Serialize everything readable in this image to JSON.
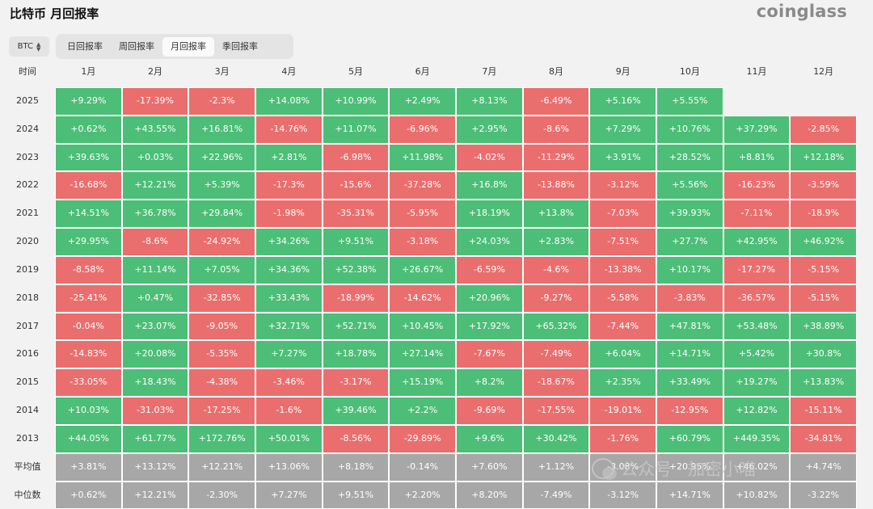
{
  "title": "比特币 月回报率",
  "brand": "coinglass",
  "asset_select": {
    "value": "BTC",
    "icon": "chevron-updown-icon"
  },
  "tabs": [
    {
      "label": "日回报率",
      "active": false
    },
    {
      "label": "周回报率",
      "active": false
    },
    {
      "label": "月回报率",
      "active": true
    },
    {
      "label": "季回报率",
      "active": false
    }
  ],
  "columns": [
    "时间",
    "1月",
    "2月",
    "3月",
    "4月",
    "5月",
    "6月",
    "7月",
    "8月",
    "9月",
    "10月",
    "11月",
    "12月"
  ],
  "rows": [
    {
      "year": "2025",
      "values": [
        "+9.29%",
        "-17.39%",
        "-2.3%",
        "+14.08%",
        "+10.99%",
        "+2.49%",
        "+8.13%",
        "-6.49%",
        "+5.16%",
        "+5.55%",
        "",
        ""
      ]
    },
    {
      "year": "2024",
      "values": [
        "+0.62%",
        "+43.55%",
        "+16.81%",
        "-14.76%",
        "+11.07%",
        "-6.96%",
        "+2.95%",
        "-8.6%",
        "+7.29%",
        "+10.76%",
        "+37.29%",
        "-2.85%"
      ]
    },
    {
      "year": "2023",
      "values": [
        "+39.63%",
        "+0.03%",
        "+22.96%",
        "+2.81%",
        "-6.98%",
        "+11.98%",
        "-4.02%",
        "-11.29%",
        "+3.91%",
        "+28.52%",
        "+8.81%",
        "+12.18%"
      ]
    },
    {
      "year": "2022",
      "values": [
        "-16.68%",
        "+12.21%",
        "+5.39%",
        "-17.3%",
        "-15.6%",
        "-37.28%",
        "+16.8%",
        "-13.88%",
        "-3.12%",
        "+5.56%",
        "-16.23%",
        "-3.59%"
      ]
    },
    {
      "year": "2021",
      "values": [
        "+14.51%",
        "+36.78%",
        "+29.84%",
        "-1.98%",
        "-35.31%",
        "-5.95%",
        "+18.19%",
        "+13.8%",
        "-7.03%",
        "+39.93%",
        "-7.11%",
        "-18.9%"
      ]
    },
    {
      "year": "2020",
      "values": [
        "+29.95%",
        "-8.6%",
        "-24.92%",
        "+34.26%",
        "+9.51%",
        "-3.18%",
        "+24.03%",
        "+2.83%",
        "-7.51%",
        "+27.7%",
        "+42.95%",
        "+46.92%"
      ]
    },
    {
      "year": "2019",
      "values": [
        "-8.58%",
        "+11.14%",
        "+7.05%",
        "+34.36%",
        "+52.38%",
        "+26.67%",
        "-6.59%",
        "-4.6%",
        "-13.38%",
        "+10.17%",
        "-17.27%",
        "-5.15%"
      ]
    },
    {
      "year": "2018",
      "values": [
        "-25.41%",
        "+0.47%",
        "-32.85%",
        "+33.43%",
        "-18.99%",
        "-14.62%",
        "+20.96%",
        "-9.27%",
        "-5.58%",
        "-3.83%",
        "-36.57%",
        "-5.15%"
      ]
    },
    {
      "year": "2017",
      "values": [
        "-0.04%",
        "+23.07%",
        "-9.05%",
        "+32.71%",
        "+52.71%",
        "+10.45%",
        "+17.92%",
        "+65.32%",
        "-7.44%",
        "+47.81%",
        "+53.48%",
        "+38.89%"
      ]
    },
    {
      "year": "2016",
      "values": [
        "-14.83%",
        "+20.08%",
        "-5.35%",
        "+7.27%",
        "+18.78%",
        "+27.14%",
        "-7.67%",
        "-7.49%",
        "+6.04%",
        "+14.71%",
        "+5.42%",
        "+30.8%"
      ]
    },
    {
      "year": "2015",
      "values": [
        "-33.05%",
        "+18.43%",
        "-4.38%",
        "-3.46%",
        "-3.17%",
        "+15.19%",
        "+8.2%",
        "-18.67%",
        "+2.35%",
        "+33.49%",
        "+19.27%",
        "+13.83%"
      ]
    },
    {
      "year": "2014",
      "values": [
        "+10.03%",
        "-31.03%",
        "-17.25%",
        "-1.6%",
        "+39.46%",
        "+2.2%",
        "-9.69%",
        "-17.55%",
        "-19.01%",
        "-12.95%",
        "+12.82%",
        "-15.11%"
      ]
    },
    {
      "year": "2013",
      "values": [
        "+44.05%",
        "+61.77%",
        "+172.76%",
        "+50.01%",
        "-8.56%",
        "-29.89%",
        "+9.6%",
        "+30.42%",
        "-1.76%",
        "+60.79%",
        "+449.35%",
        "-34.81%"
      ]
    }
  ],
  "summary_rows": [
    {
      "label": "平均值",
      "values": [
        "+3.81%",
        "+13.12%",
        "+12.21%",
        "+13.06%",
        "+8.18%",
        "-0.14%",
        "+7.60%",
        "+1.12%",
        "-3.08%",
        "+20.95%",
        "+46.02%",
        "+4.74%"
      ]
    },
    {
      "label": "中位数",
      "values": [
        "+0.62%",
        "+12.21%",
        "-2.30%",
        "+7.27%",
        "+9.51%",
        "+2.20%",
        "+8.20%",
        "-7.49%",
        "-3.12%",
        "+14.71%",
        "+10.82%",
        "-3.22%"
      ]
    }
  ],
  "colors": {
    "positive": "#4cbe77",
    "negative": "#ea6e6e",
    "summary": "#a7a7a7",
    "background": "#f2f2f2"
  },
  "watermark": {
    "text": "公众号 · 加密小喵",
    "icon": "wechat-icon"
  }
}
